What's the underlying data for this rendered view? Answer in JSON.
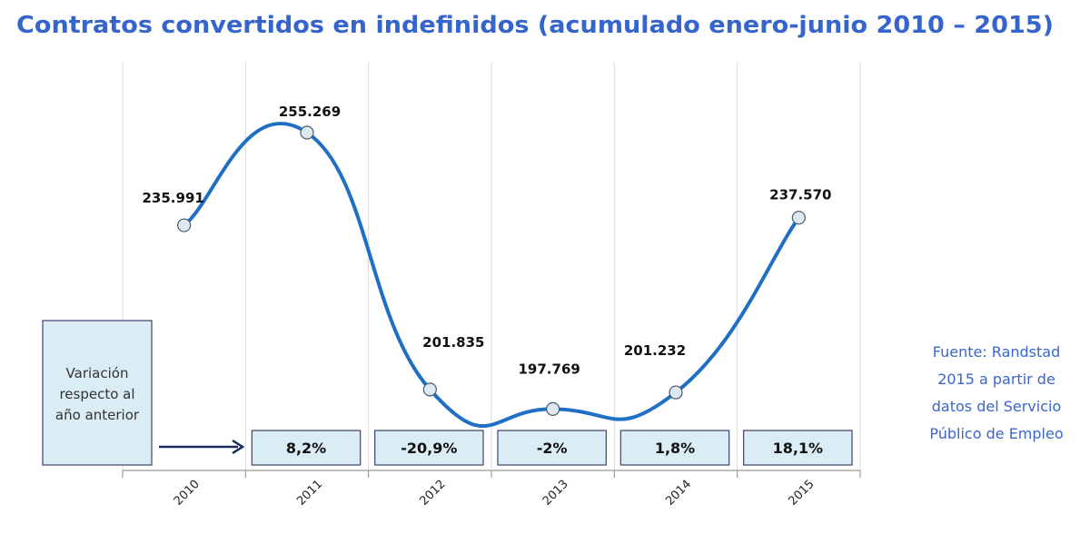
{
  "chart_data": {
    "type": "line",
    "title": "Contratos convertidos en indefinidos (acumulado enero-junio 2010 – 2015)",
    "categories": [
      "2010",
      "2011",
      "2012",
      "2013",
      "2014",
      "2015"
    ],
    "series": [
      {
        "values": [
          235991,
          255269,
          201835,
          197769,
          201232,
          237570
        ],
        "data_labels": [
          "235.991",
          "255.269",
          "201.835",
          "197.769",
          "201.232",
          "237.570"
        ]
      }
    ],
    "variation": {
      "label_lines": [
        "Variación",
        "respecto al",
        "año anterior"
      ],
      "values": [
        "",
        "8,2%",
        "-20,9%",
        "-2%",
        "1,8%",
        "18,1%"
      ]
    },
    "ylim": [
      185000,
      270000
    ],
    "smoothed": true,
    "grid": "vertical",
    "xlabel": "",
    "ylabel": "",
    "source_lines": [
      "Fuente: Randstad",
      "2015 a partir de",
      "datos del Servicio",
      "Público de Empleo"
    ],
    "colors": {
      "title": "#3565cc",
      "line": "#1f6fc5",
      "marker_fill": "#dde9f2",
      "box_fill": "#daedf4",
      "box_border": "#3f4070",
      "arrow": "#1a2a5e",
      "source": "#3a66cc"
    }
  }
}
